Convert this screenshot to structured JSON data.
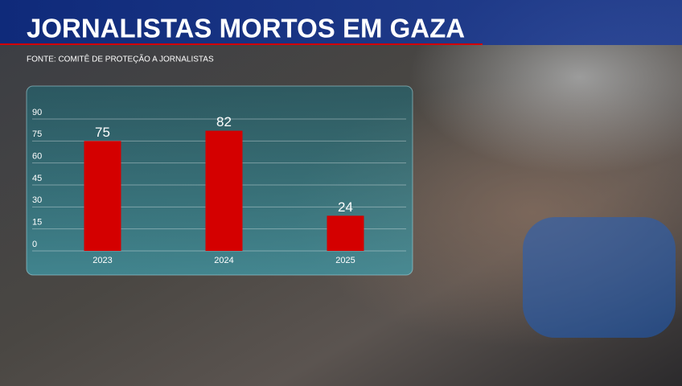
{
  "chart_data": {
    "type": "bar",
    "title": "JORNALISTAS MORTOS EM GAZA",
    "subtitle": "FONTE: COMITÊ DE PROTEÇÃO A JORNALISTAS",
    "categories": [
      "2023",
      "2024",
      "2025"
    ],
    "values": [
      75,
      82,
      24
    ],
    "color": "#d40000",
    "ylim": [
      0,
      90
    ],
    "yticks": [
      0,
      15,
      30,
      45,
      60,
      75,
      90
    ],
    "grid": true
  }
}
